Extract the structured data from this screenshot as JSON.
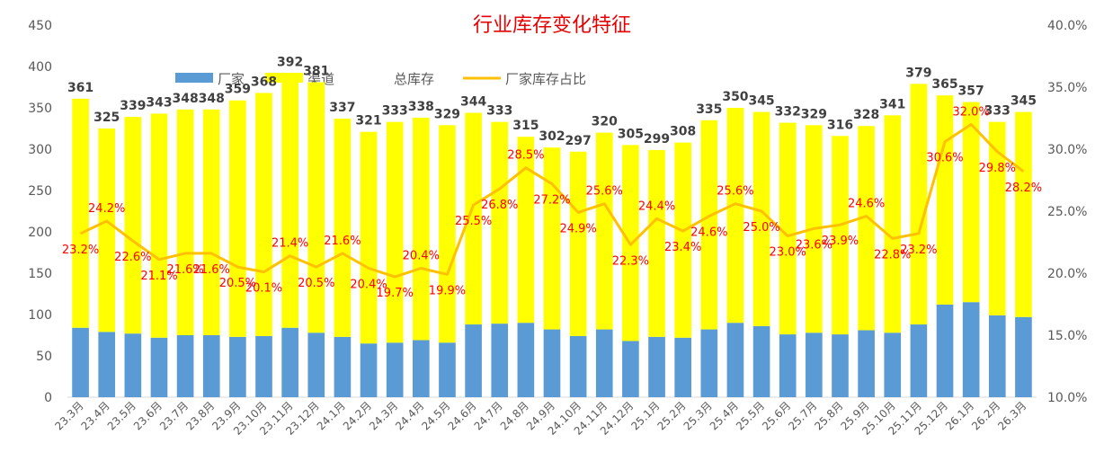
{
  "chart_data": {
    "type": "bar",
    "stacked": true,
    "title": "行业库存变化特征",
    "categories": [
      "23.3月",
      "23.4月",
      "23.5月",
      "23.6月",
      "23.7月",
      "23.8月",
      "23.9月",
      "23.10月",
      "23.11月",
      "23.12月",
      "24.1月",
      "24.2月",
      "24.3月",
      "24.4月",
      "24.5月",
      "24.6月",
      "24.7月",
      "24.8月",
      "24.9月",
      "24.10月",
      "24.11月",
      "24.12月",
      "25.1月",
      "25.2月",
      "25.3月",
      "25.4月",
      "25.5月",
      "25.6月",
      "25.7月",
      "25.8月",
      "25.9月",
      "25.10月",
      "25.11月",
      "25.12月",
      "26.1月",
      "26.2月",
      "26.3月"
    ],
    "series": [
      {
        "name": "厂家",
        "type": "bar",
        "color": "#5b9bd5",
        "values": [
          84,
          79,
          77,
          72,
          75,
          75,
          73,
          74,
          84,
          78,
          73,
          65,
          66,
          69,
          66,
          88,
          89,
          90,
          82,
          74,
          82,
          68,
          73,
          72,
          82,
          90,
          86,
          76,
          78,
          76,
          81,
          78,
          88,
          112,
          115,
          99,
          97
        ]
      },
      {
        "name": "渠道",
        "type": "bar",
        "color": "#ffff00",
        "values": [
          277,
          246,
          262,
          271,
          273,
          273,
          286,
          294,
          308,
          303,
          264,
          256,
          267,
          269,
          263,
          256,
          244,
          225,
          220,
          223,
          238,
          237,
          226,
          236,
          253,
          260,
          259,
          256,
          251,
          240,
          247,
          263,
          291,
          253,
          242,
          234,
          248
        ]
      },
      {
        "name": "总库存",
        "type": "label",
        "values": [
          361,
          325,
          339,
          343,
          348,
          348,
          359,
          368,
          392,
          381,
          337,
          321,
          333,
          338,
          329,
          344,
          333,
          315,
          302,
          297,
          320,
          305,
          299,
          308,
          335,
          350,
          345,
          332,
          329,
          316,
          328,
          341,
          379,
          365,
          357,
          333,
          345
        ]
      },
      {
        "name": "厂家库存占比",
        "type": "line",
        "axis": "right",
        "color": "#ffc000",
        "values": [
          23.2,
          24.2,
          22.6,
          21.1,
          21.6,
          21.6,
          20.5,
          20.1,
          21.4,
          20.5,
          21.6,
          20.4,
          19.7,
          20.4,
          19.9,
          25.5,
          26.8,
          28.5,
          27.2,
          24.9,
          25.6,
          22.3,
          24.4,
          23.4,
          24.6,
          25.6,
          25.0,
          23.0,
          23.6,
          23.9,
          24.6,
          22.8,
          23.2,
          30.6,
          32.0,
          29.8,
          28.2
        ]
      }
    ],
    "y_left": {
      "min": 0,
      "max": 450,
      "ticks": [
        "0",
        "50",
        "100",
        "150",
        "200",
        "250",
        "300",
        "350",
        "400",
        "450"
      ]
    },
    "y_right": {
      "min": 10,
      "max": 40,
      "ticks": [
        "10.0%",
        "15.0%",
        "20.0%",
        "25.0%",
        "30.0%",
        "35.0%",
        "40.0%"
      ]
    },
    "ratio_labels": [
      "23.2%",
      "24.2%",
      "22.6%",
      "21.1%",
      "21.6%",
      "21.6%",
      "20.5%",
      "20.1%",
      "21.4%",
      "20.5%",
      "21.6%",
      "20.4%",
      "19.7%",
      "20.4%",
      "19.9%",
      "25.5%",
      "26.8%",
      "28.5%",
      "27.2%",
      "24.9%",
      "25.6%",
      "22.3%",
      "24.4%",
      "23.4%",
      "24.6%",
      "25.6%",
      "25.0%",
      "23.0%",
      "23.6%",
      "23.9%",
      "24.6%",
      "22.8%",
      "23.2%",
      "30.6%",
      "32.0%",
      "29.8%",
      "28.2%"
    ],
    "legend": {
      "placement": "top-left",
      "items": [
        "厂家",
        "渠道",
        "总库存",
        "厂家库存占比"
      ]
    },
    "grid": false
  }
}
